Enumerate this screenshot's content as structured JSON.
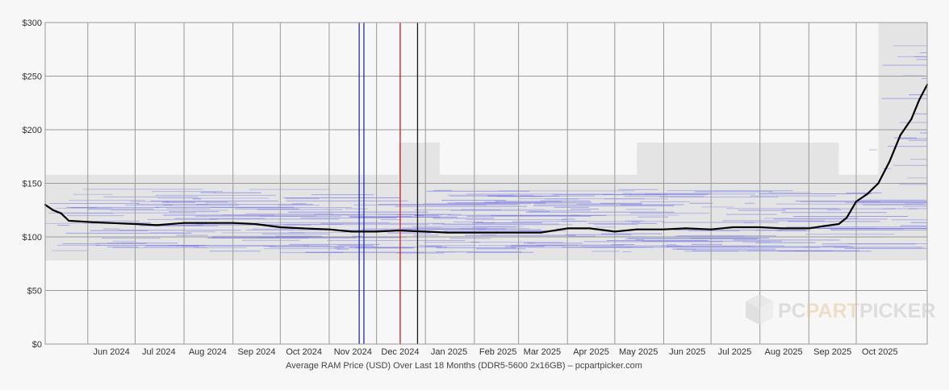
{
  "chart_data": {
    "type": "line",
    "title": "",
    "caption": "Average RAM Price (USD) Over Last 18 Months (DDR5-5600 2x16GB) – pcpartpicker.com",
    "xlabel": "",
    "ylabel": "",
    "x_range": [
      "2024-05-05",
      "2025-11-15"
    ],
    "ylim": [
      0,
      300
    ],
    "y_ticks": [
      {
        "value": 0,
        "label": "$0"
      },
      {
        "value": 50,
        "label": "$50"
      },
      {
        "value": 100,
        "label": "$100"
      },
      {
        "value": 150,
        "label": "$150"
      },
      {
        "value": 200,
        "label": "$200"
      },
      {
        "value": 250,
        "label": "$250"
      },
      {
        "value": 300,
        "label": "$300"
      }
    ],
    "x_ticks": [
      {
        "date": "2024-06-01",
        "label": "Jun 2024"
      },
      {
        "date": "2024-07-01",
        "label": "Jul 2024"
      },
      {
        "date": "2024-08-01",
        "label": "Aug 2024"
      },
      {
        "date": "2024-09-01",
        "label": "Sep 2024"
      },
      {
        "date": "2024-10-01",
        "label": "Oct 2024"
      },
      {
        "date": "2024-11-01",
        "label": "Nov 2024"
      },
      {
        "date": "2024-12-01",
        "label": "Dec 2024"
      },
      {
        "date": "2025-01-01",
        "label": "Jan 2025"
      },
      {
        "date": "2025-02-01",
        "label": "Feb 2025"
      },
      {
        "date": "2025-03-01",
        "label": "Mar 2025"
      },
      {
        "date": "2025-04-01",
        "label": "Apr 2025"
      },
      {
        "date": "2025-05-01",
        "label": "May 2025"
      },
      {
        "date": "2025-06-01",
        "label": "Jun 2025"
      },
      {
        "date": "2025-07-01",
        "label": "Jul 2025"
      },
      {
        "date": "2025-08-01",
        "label": "Aug 2025"
      },
      {
        "date": "2025-09-01",
        "label": "Sep 2025"
      },
      {
        "date": "2025-10-01",
        "label": "Oct 2025"
      }
    ],
    "grid": true,
    "series": [
      {
        "color": "#000000",
        "x": [
          "2024-05-05",
          "2024-05-10",
          "2024-05-15",
          "2024-05-20",
          "2024-06-01",
          "2024-06-15",
          "2024-07-01",
          "2024-07-15",
          "2024-08-01",
          "2024-08-15",
          "2024-09-01",
          "2024-09-15",
          "2024-10-01",
          "2024-10-15",
          "2024-11-01",
          "2024-11-15",
          "2024-12-01",
          "2024-12-15",
          "2025-01-01",
          "2025-01-15",
          "2025-02-01",
          "2025-02-15",
          "2025-03-01",
          "2025-03-15",
          "2025-04-01",
          "2025-04-15",
          "2025-05-01",
          "2025-05-15",
          "2025-06-01",
          "2025-06-15",
          "2025-07-01",
          "2025-07-15",
          "2025-08-01",
          "2025-08-15",
          "2025-09-01",
          "2025-09-10",
          "2025-09-20",
          "2025-09-25",
          "2025-10-01",
          "2025-10-08",
          "2025-10-15",
          "2025-10-22",
          "2025-10-29",
          "2025-11-05",
          "2025-11-10",
          "2025-11-15"
        ],
        "y": [
          130,
          125,
          122,
          115,
          114,
          113,
          112,
          111,
          113,
          113,
          113,
          112,
          109,
          108,
          107,
          105,
          105,
          106,
          105,
          104,
          104,
          104,
          104,
          104,
          108,
          108,
          105,
          107,
          107,
          108,
          107,
          109,
          109,
          108,
          108,
          110,
          112,
          118,
          133,
          140,
          150,
          170,
          195,
          210,
          228,
          242
        ]
      }
    ],
    "bands": [
      {
        "from": "2024-05-05",
        "to": "2025-11-15",
        "low": 78,
        "high": 158,
        "color": "#e4e4e4"
      },
      {
        "from": "2024-12-15",
        "to": "2025-01-10",
        "low": 85,
        "high": 188,
        "color": "#e4e4e4"
      },
      {
        "from": "2025-05-15",
        "to": "2025-09-20",
        "low": 88,
        "high": 188,
        "color": "#e4e4e4"
      },
      {
        "from": "2025-10-15",
        "to": "2025-11-15",
        "low": 98,
        "high": 300,
        "color": "#e4e4e4"
      }
    ],
    "price_lines_color": "#6f6fe6",
    "markers": [
      {
        "date": "2024-11-20",
        "color": "#2a2a9a"
      },
      {
        "date": "2024-11-23",
        "color": "#2a2a9a"
      },
      {
        "date": "2024-12-16",
        "color": "#d01818"
      },
      {
        "date": "2024-12-27",
        "color": "#1a1a1a"
      }
    ]
  },
  "watermark": {
    "part1": "PC",
    "part2": "PART",
    "part3": "PICKER"
  }
}
